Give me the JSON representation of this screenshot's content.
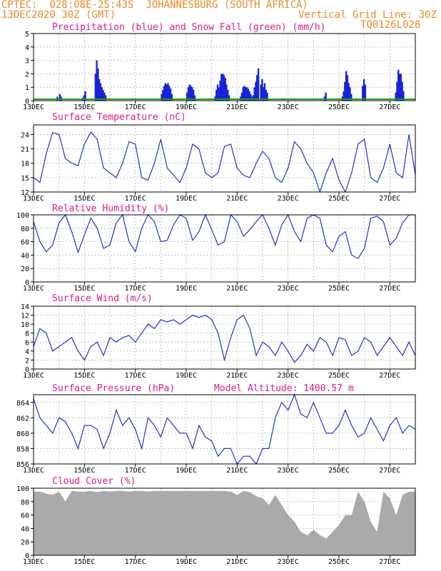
{
  "header": {
    "line1_left": "CPTEC:  028:08E-25:43S  JOHANNESBURG (SOUTH AFRICA)",
    "line2_left": "13DEC2020 30Z (GMT)",
    "line2_right": "Vertical Grid Line: 30Z",
    "model_code": "TQ0126L028"
  },
  "colors": {
    "line": "#2233cc",
    "precip": "#1a22d8",
    "snow": "#20a020",
    "cloud": "#aaaaaa",
    "title": "#e0198a",
    "header": "#e8892a"
  },
  "x_tick_labels": [
    "13DEC",
    "15DEC",
    "17DEC",
    "19DEC",
    "21DEC",
    "23DEC",
    "25DEC",
    "27DEC"
  ],
  "chart_data": [
    {
      "type": "bar",
      "title": "Precipitation (blue) and Snow Fall (green) (mm/h)",
      "ylim": [
        0,
        5
      ],
      "yticks": [
        0,
        1,
        2,
        3,
        4,
        5
      ],
      "x_range_days": [
        0,
        15
      ],
      "grid": true,
      "series": [
        {
          "name": "Precipitation",
          "x": [
            0.9,
            1.0,
            1.05,
            1.9,
            1.95,
            2.0,
            2.4,
            2.45,
            2.5,
            2.55,
            2.6,
            2.65,
            2.7,
            2.75,
            2.8,
            5.0,
            5.05,
            5.1,
            5.15,
            5.2,
            5.25,
            5.3,
            5.35,
            5.4,
            6.0,
            6.05,
            6.1,
            6.15,
            6.2,
            6.25,
            6.3,
            7.1,
            7.15,
            7.2,
            7.25,
            7.3,
            7.35,
            7.4,
            7.45,
            7.5,
            7.55,
            7.6,
            7.65,
            8.1,
            8.15,
            8.2,
            8.25,
            8.3,
            8.35,
            8.4,
            8.45,
            8.5,
            8.55,
            8.6,
            8.65,
            8.7,
            8.75,
            8.8,
            8.9,
            8.95,
            9.0,
            9.05,
            9.1,
            9.15,
            11.4,
            11.45,
            12.1,
            12.15,
            12.2,
            12.25,
            12.3,
            12.35,
            12.4,
            12.45,
            12.9,
            12.95,
            13.0,
            14.2,
            14.25,
            14.3,
            14.35,
            14.4,
            14.45,
            14.5
          ],
          "values": [
            0.3,
            0.5,
            0.3,
            0.2,
            0.4,
            0.7,
            2.0,
            3.0,
            2.4,
            1.6,
            1.3,
            1.0,
            0.8,
            0.6,
            0.4,
            0.5,
            0.8,
            1.1,
            1.3,
            1.2,
            1.3,
            1.1,
            0.9,
            0.5,
            0.6,
            1.0,
            1.2,
            1.1,
            1.0,
            0.8,
            0.4,
            0.3,
            0.8,
            1.2,
            1.0,
            1.5,
            2.0,
            2.0,
            1.9,
            1.7,
            1.2,
            0.8,
            0.4,
            0.3,
            0.6,
            1.0,
            1.1,
            1.0,
            1.0,
            0.9,
            0.7,
            0.5,
            0.3,
            0.4,
            1.0,
            1.4,
            1.9,
            2.4,
            1.2,
            1.6,
            1.0,
            1.3,
            0.8,
            0.6,
            0.3,
            0.6,
            0.3,
            0.7,
            1.4,
            2.2,
            1.9,
            1.3,
            1.0,
            0.5,
            1.1,
            1.6,
            1.2,
            0.6,
            1.4,
            2.3,
            2.0,
            2.0,
            1.4,
            0.7
          ]
        },
        {
          "name": "Snow Fall",
          "x": [
            0,
            15
          ],
          "values": [
            0.05,
            0.05
          ]
        }
      ]
    },
    {
      "type": "line",
      "title": "Surface Temperature (nC)",
      "ylim": [
        12,
        26
      ],
      "yticks": [
        12,
        15,
        18,
        21,
        24
      ],
      "x_range_days": [
        0,
        15
      ],
      "grid": true,
      "x": [
        0,
        0.25,
        0.5,
        0.75,
        1,
        1.25,
        1.5,
        1.75,
        2,
        2.25,
        2.5,
        2.75,
        3,
        3.25,
        3.5,
        3.75,
        4,
        4.25,
        4.5,
        4.75,
        5,
        5.25,
        5.5,
        5.75,
        6,
        6.25,
        6.5,
        6.75,
        7,
        7.25,
        7.5,
        7.75,
        8,
        8.25,
        8.5,
        8.75,
        9,
        9.25,
        9.5,
        9.75,
        10,
        10.25,
        10.5,
        10.75,
        11,
        11.25,
        11.5,
        11.75,
        12,
        12.25,
        12.5,
        12.75,
        13,
        13.25,
        13.5,
        13.75,
        14,
        14.25,
        14.5,
        14.75,
        15
      ],
      "values": [
        15,
        14,
        20,
        24.4,
        24,
        19,
        18,
        17.5,
        22,
        24.5,
        23,
        17,
        16,
        15,
        18,
        22.5,
        22,
        15,
        14.5,
        18,
        23,
        17,
        15.5,
        14,
        17,
        22,
        21,
        16,
        15,
        16,
        21.5,
        22,
        17,
        15.5,
        15,
        18,
        20.5,
        19,
        15,
        14,
        17,
        22.5,
        21,
        18,
        16,
        12,
        16,
        19,
        14.5,
        12,
        16,
        22,
        23,
        15,
        14,
        17,
        22,
        16,
        15,
        24,
        15.5
      ]
    },
    {
      "type": "line",
      "title": "Relative Humidity (%)",
      "ylim": [
        0,
        100
      ],
      "yticks": [
        0,
        20,
        40,
        60,
        80,
        100
      ],
      "x_range_days": [
        0,
        15
      ],
      "grid": true,
      "x": [
        0,
        0.25,
        0.5,
        0.75,
        1,
        1.25,
        1.5,
        1.75,
        2,
        2.25,
        2.5,
        2.75,
        3,
        3.25,
        3.5,
        3.75,
        4,
        4.25,
        4.5,
        4.75,
        5,
        5.25,
        5.5,
        5.75,
        6,
        6.25,
        6.5,
        6.75,
        7,
        7.25,
        7.5,
        7.75,
        8,
        8.25,
        8.5,
        8.75,
        9,
        9.25,
        9.5,
        9.75,
        10,
        10.25,
        10.5,
        10.75,
        11,
        11.25,
        11.5,
        11.75,
        12,
        12.25,
        12.5,
        12.75,
        13,
        13.25,
        13.5,
        13.75,
        14,
        14.25,
        14.5,
        14.75,
        15
      ],
      "values": [
        90,
        60,
        45,
        55,
        88,
        100,
        75,
        44,
        70,
        95,
        80,
        50,
        55,
        88,
        100,
        60,
        45,
        80,
        100,
        90,
        60,
        62,
        85,
        100,
        95,
        62,
        75,
        100,
        78,
        55,
        60,
        100,
        90,
        68,
        78,
        90,
        100,
        80,
        55,
        85,
        100,
        75,
        60,
        95,
        100,
        95,
        55,
        45,
        68,
        75,
        40,
        35,
        50,
        95,
        98,
        90,
        55,
        65,
        88,
        100,
        100
      ]
    },
    {
      "type": "line",
      "title": "Surface Wind (m/s)",
      "ylim": [
        0,
        14
      ],
      "yticks": [
        0,
        2,
        4,
        6,
        8,
        10,
        12,
        14
      ],
      "x_range_days": [
        0,
        15
      ],
      "grid": true,
      "x": [
        0,
        0.25,
        0.5,
        0.75,
        1,
        1.25,
        1.5,
        1.75,
        2,
        2.25,
        2.5,
        2.75,
        3,
        3.25,
        3.5,
        3.75,
        4,
        4.25,
        4.5,
        4.75,
        5,
        5.25,
        5.5,
        5.75,
        6,
        6.25,
        6.5,
        6.75,
        7,
        7.25,
        7.5,
        7.75,
        8,
        8.25,
        8.5,
        8.75,
        9,
        9.25,
        9.5,
        9.75,
        10,
        10.25,
        10.5,
        10.75,
        11,
        11.25,
        11.5,
        11.75,
        12,
        12.25,
        12.5,
        12.75,
        13,
        13.25,
        13.5,
        13.75,
        14,
        14.25,
        14.5,
        14.75,
        15
      ],
      "values": [
        5,
        9,
        8,
        4,
        5,
        6,
        7,
        4,
        2,
        5,
        6,
        3,
        7,
        6,
        7,
        7.5,
        6,
        8,
        10,
        9,
        11,
        10.5,
        11,
        10,
        11,
        12,
        11.5,
        12,
        11,
        8,
        2,
        7,
        11,
        12,
        9,
        3,
        6,
        5,
        3,
        6,
        4,
        1.5,
        3,
        5.5,
        4,
        7,
        6,
        3,
        7,
        6.5,
        3,
        4,
        7,
        6,
        3,
        5,
        7,
        5,
        3,
        6,
        3
      ]
    },
    {
      "type": "line",
      "title": "Surface Pressure (hPa)",
      "subtitle": "Model Altitude: 1400.57 m",
      "ylim": [
        856,
        865
      ],
      "yticks": [
        856,
        858,
        860,
        862,
        864
      ],
      "x_range_days": [
        0,
        15
      ],
      "grid": true,
      "x": [
        0,
        0.25,
        0.5,
        0.75,
        1,
        1.25,
        1.5,
        1.75,
        2,
        2.25,
        2.5,
        2.75,
        3,
        3.25,
        3.5,
        3.75,
        4,
        4.25,
        4.5,
        4.75,
        5,
        5.25,
        5.5,
        5.75,
        6,
        6.25,
        6.5,
        6.75,
        7,
        7.25,
        7.5,
        7.75,
        8,
        8.25,
        8.5,
        8.75,
        9,
        9.25,
        9.5,
        9.75,
        10,
        10.25,
        10.5,
        10.75,
        11,
        11.25,
        11.5,
        11.75,
        12,
        12.25,
        12.5,
        12.75,
        13,
        13.25,
        13.5,
        13.75,
        14,
        14.25,
        14.5,
        14.75,
        15
      ],
      "values": [
        864.5,
        862,
        861,
        860,
        862,
        861.5,
        860,
        858,
        861,
        861,
        860.5,
        858,
        860,
        863,
        861,
        862,
        860.5,
        858,
        862,
        861,
        859.5,
        862,
        861,
        860,
        860,
        858,
        861,
        859.5,
        859,
        857,
        858,
        858,
        856,
        857,
        857,
        856,
        858,
        858,
        862,
        864,
        863,
        865,
        862.5,
        862,
        864,
        862,
        860,
        860,
        861,
        863,
        861,
        859.5,
        860,
        862,
        860.5,
        859,
        861,
        862,
        860,
        861,
        860.5
      ]
    },
    {
      "type": "area",
      "title": "Cloud Cover (%)",
      "ylim": [
        0,
        100
      ],
      "yticks": [
        0,
        20,
        40,
        60,
        80,
        100
      ],
      "x_range_days": [
        0,
        15
      ],
      "grid": true,
      "x": [
        0,
        0.25,
        0.5,
        0.75,
        1,
        1.25,
        1.5,
        1.75,
        2,
        2.25,
        2.5,
        2.75,
        3,
        3.25,
        3.5,
        3.75,
        4,
        4.25,
        4.5,
        4.75,
        5,
        5.25,
        5.5,
        5.75,
        6,
        6.25,
        6.5,
        6.75,
        7,
        7.25,
        7.5,
        7.75,
        8,
        8.25,
        8.5,
        8.75,
        9,
        9.25,
        9.5,
        9.75,
        10,
        10.25,
        10.5,
        10.75,
        11,
        11.25,
        11.5,
        11.75,
        12,
        12.25,
        12.5,
        12.75,
        13,
        13.25,
        13.5,
        13.75,
        14,
        14.25,
        14.5,
        14.75,
        15
      ],
      "values": [
        95,
        95,
        92,
        90,
        95,
        80,
        96,
        95,
        95,
        96,
        94,
        96,
        95,
        96,
        96,
        95,
        96,
        96,
        95,
        96,
        96,
        96,
        96,
        96,
        96,
        96,
        96,
        96,
        96,
        96,
        96,
        95,
        90,
        96,
        94,
        88,
        85,
        75,
        90,
        75,
        60,
        50,
        35,
        30,
        38,
        30,
        25,
        35,
        45,
        60,
        60,
        95,
        80,
        50,
        35,
        95,
        85,
        60,
        90,
        95,
        95
      ]
    }
  ]
}
